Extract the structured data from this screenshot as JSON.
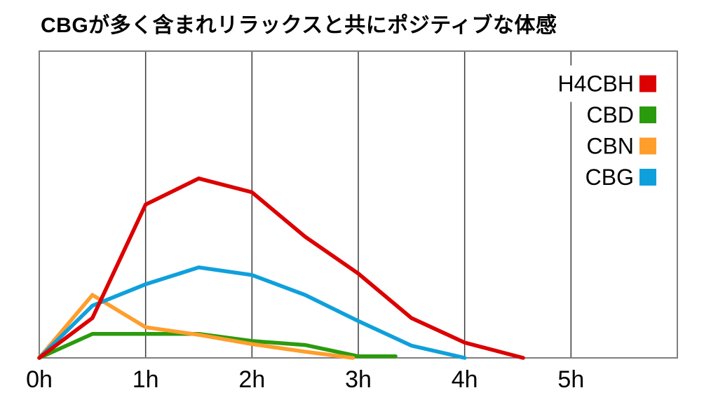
{
  "chart_data": {
    "type": "line",
    "title": "CBGが多く含まれリラックスと共にポジティブな体感",
    "xlabel": "",
    "ylabel": "",
    "x_unit": "hours",
    "xlim": [
      0,
      6
    ],
    "ylim": [
      0,
      100
    ],
    "grid": "vertical-only",
    "legend_position": "top-right",
    "note": "No y-axis scale is shown in the chart; series values are estimated as percent of plot height (0-100).",
    "x_ticks": [
      {
        "h": 0,
        "label": "0h"
      },
      {
        "h": 1,
        "label": "1h"
      },
      {
        "h": 2,
        "label": "2h"
      },
      {
        "h": 3,
        "label": "3h"
      },
      {
        "h": 4,
        "label": "4h"
      },
      {
        "h": 5,
        "label": "5h"
      }
    ],
    "series": [
      {
        "name": "H4CBH",
        "color": "#dc0000",
        "points": [
          [
            0,
            0
          ],
          [
            0.5,
            13
          ],
          [
            1,
            50
          ],
          [
            1.5,
            58.5
          ],
          [
            2,
            54
          ],
          [
            2.5,
            39.5
          ],
          [
            3,
            27.5
          ],
          [
            3.5,
            13
          ],
          [
            4,
            5
          ],
          [
            4.55,
            0
          ]
        ]
      },
      {
        "name": "CBD",
        "color": "#2b9b0e",
        "points": [
          [
            0,
            0
          ],
          [
            0.5,
            7.8
          ],
          [
            1,
            7.8
          ],
          [
            1.5,
            7.8
          ],
          [
            2,
            5.5
          ],
          [
            2.5,
            4.2
          ],
          [
            3,
            0.5
          ],
          [
            3.35,
            0.5
          ]
        ]
      },
      {
        "name": "CBN",
        "color": "#ff9e2c",
        "points": [
          [
            0,
            0
          ],
          [
            0.5,
            20.5
          ],
          [
            1,
            10
          ],
          [
            1.5,
            7.5
          ],
          [
            2,
            4.5
          ],
          [
            2.5,
            2
          ],
          [
            2.95,
            0
          ]
        ]
      },
      {
        "name": "CBG",
        "color": "#0fa0dc",
        "points": [
          [
            0,
            0
          ],
          [
            0.5,
            17
          ],
          [
            1,
            24
          ],
          [
            1.5,
            29.5
          ],
          [
            2,
            27
          ],
          [
            2.5,
            20.5
          ],
          [
            3,
            12
          ],
          [
            3.5,
            4
          ],
          [
            4,
            0
          ]
        ]
      }
    ]
  },
  "colors": {
    "background": "#ffffff",
    "plot_border": "#7f7f7f",
    "gridline": "#3a3a3a",
    "text": "#000000",
    "legend_bg": "#ffffff"
  }
}
